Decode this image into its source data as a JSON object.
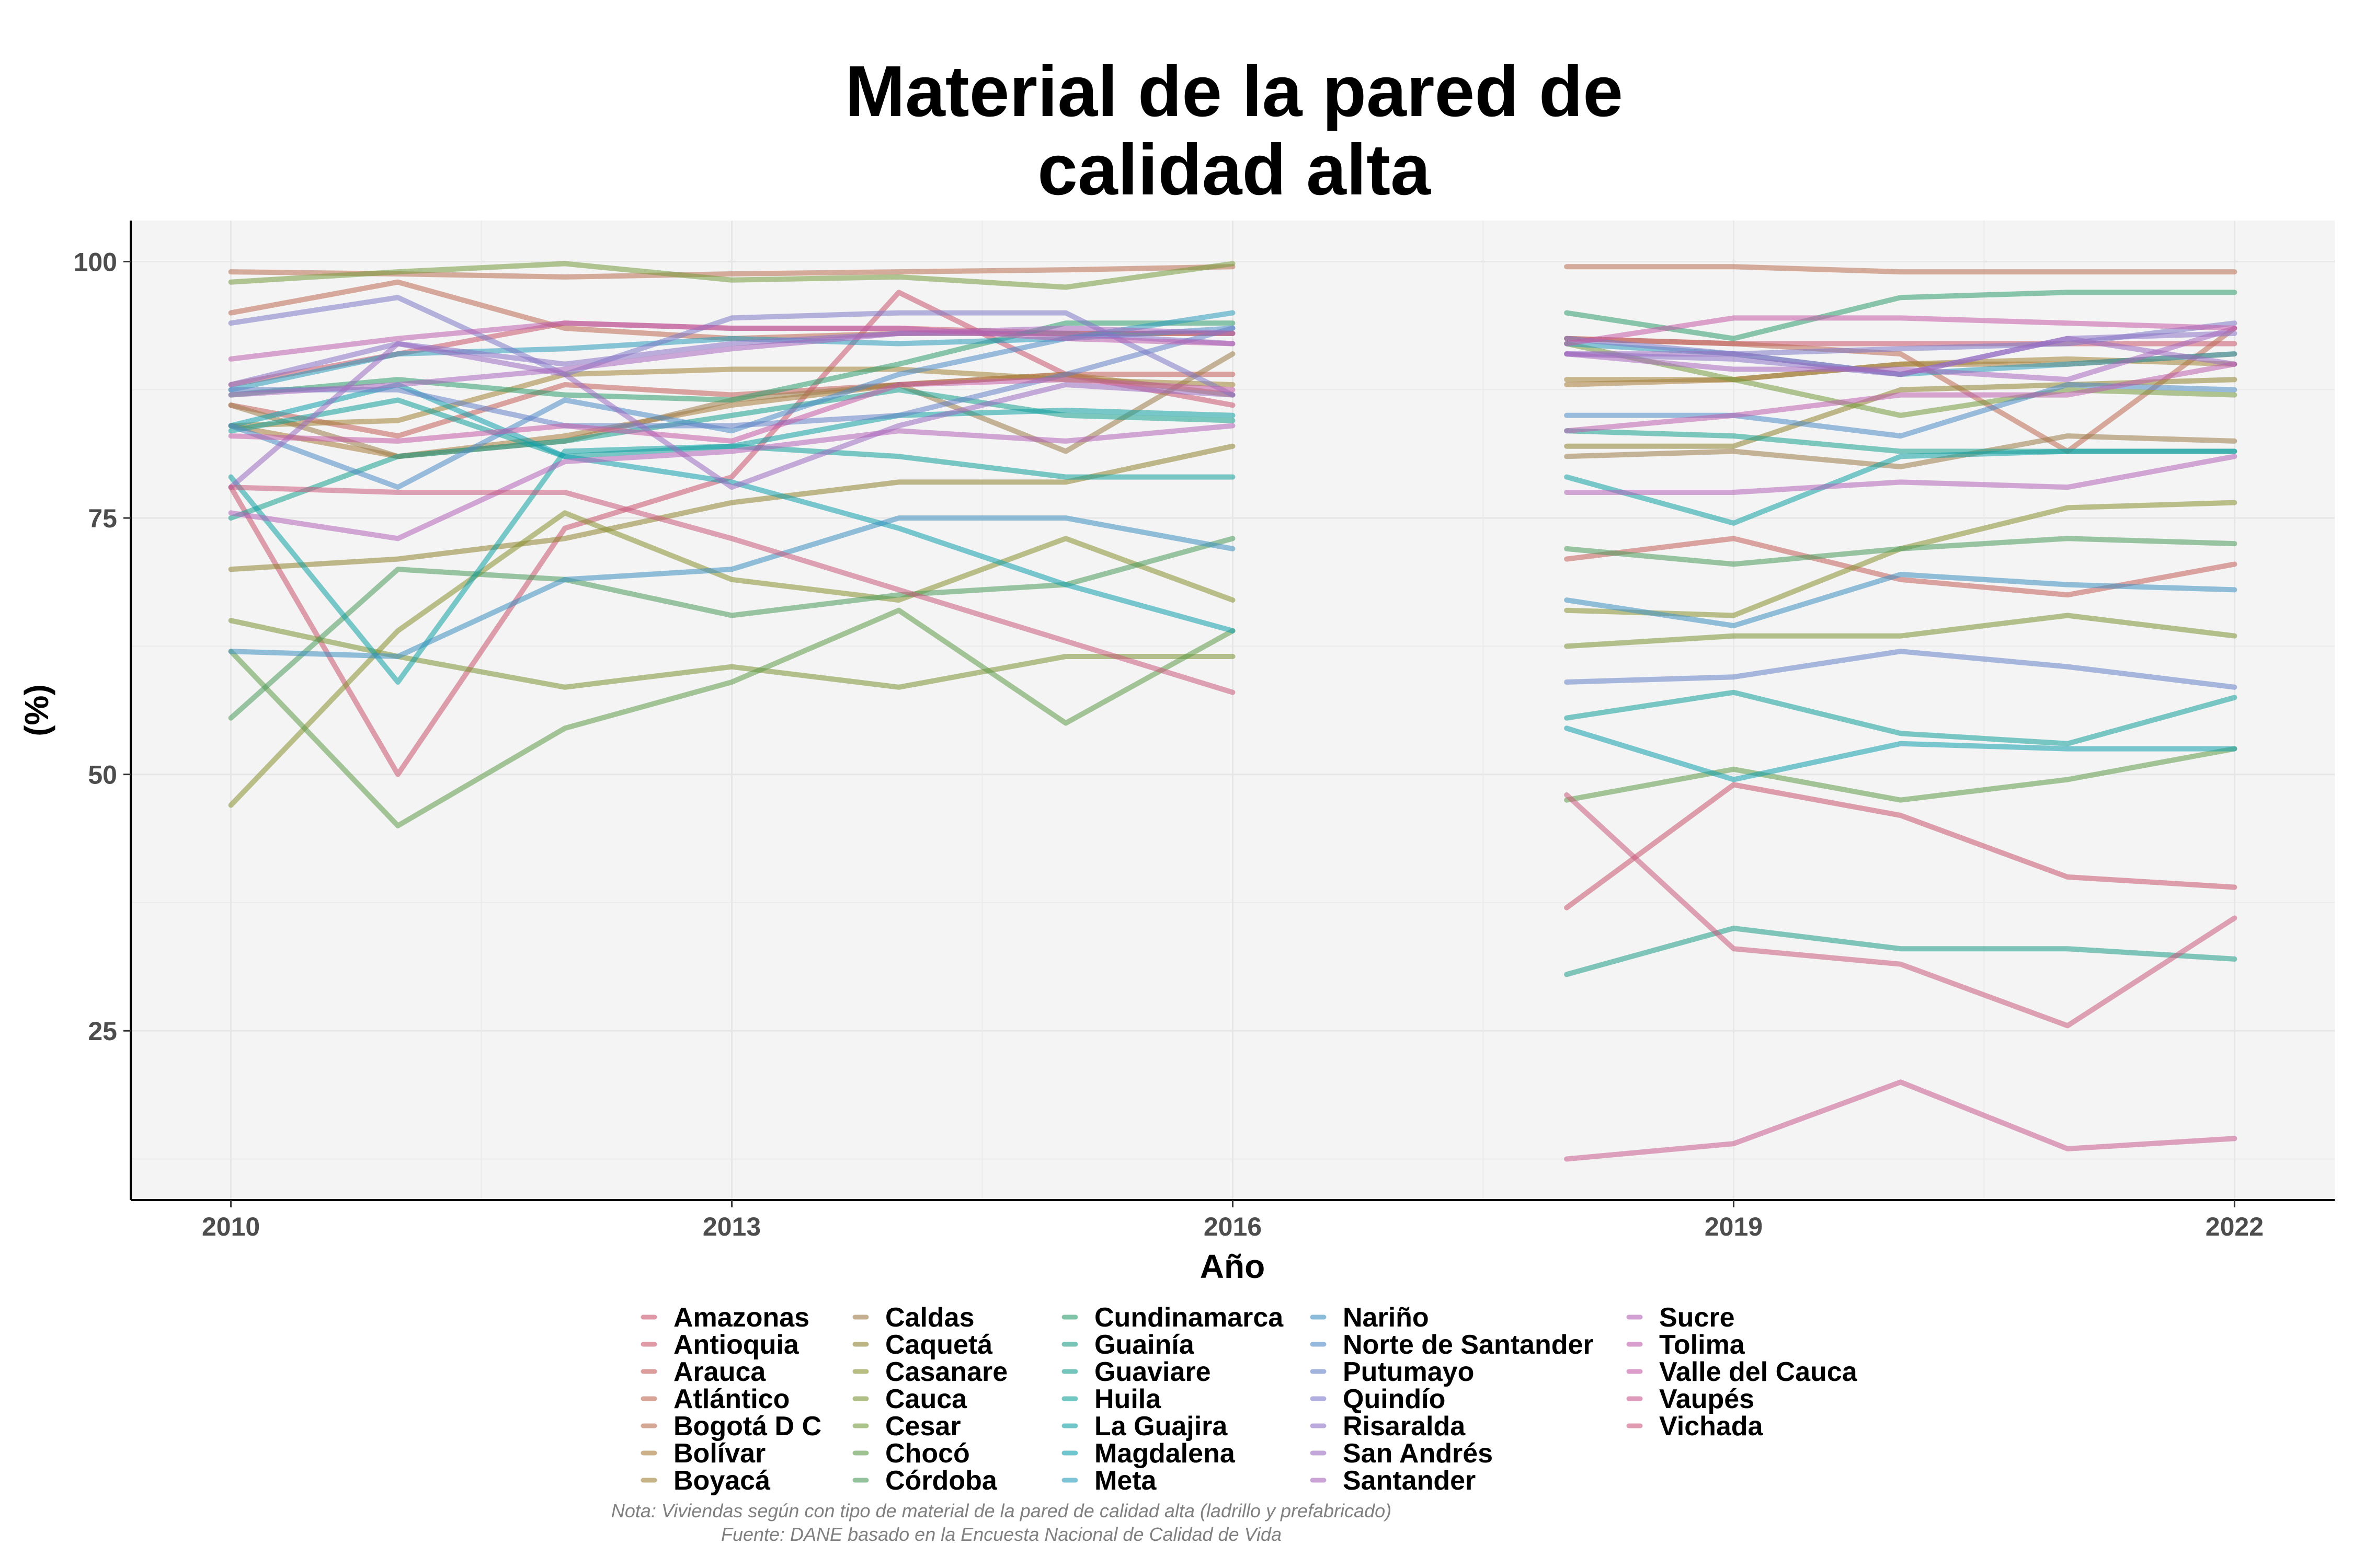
{
  "chart_data": {
    "type": "line",
    "title_lines": [
      "Material de la pared de",
      "calidad alta"
    ],
    "xlabel": "Año",
    "ylabel": "(%)",
    "x": [
      2010,
      2011,
      2012,
      2013,
      2014,
      2015,
      2016,
      2017,
      2018,
      2019,
      2020,
      2021,
      2022
    ],
    "x_ticks": [
      2010,
      2013,
      2016,
      2019,
      2022
    ],
    "y_ticks": [
      25,
      50,
      75,
      100
    ],
    "xlim": [
      2009.4,
      2022.6
    ],
    "ylim": [
      8.5,
      104
    ],
    "grid": true,
    "legend_position": "bottom",
    "caption_lines": [
      "Nota: Viviendas según con tipo de material de la pared de calidad alta (ladrillo y prefabricado)",
      "Fuente: DANE basado en la Encuesta Nacional de Calidad de Vida"
    ],
    "series": [
      {
        "name": "Amazonas",
        "color": "#c8546e",
        "values": [
          78,
          50,
          74,
          79,
          97,
          89,
          86,
          null,
          37,
          49,
          46,
          40,
          39
        ]
      },
      {
        "name": "Antioquia",
        "color": "#c9566b",
        "values": [
          88,
          91,
          94,
          93.5,
          93.5,
          93,
          93,
          null,
          92.5,
          92,
          92,
          92,
          92
        ]
      },
      {
        "name": "Arauca",
        "color": "#c35e5a",
        "values": [
          86,
          83,
          88,
          87,
          88,
          89,
          89,
          null,
          71,
          73,
          69,
          67.5,
          70.5
        ]
      },
      {
        "name": "Atlántico",
        "color": "#bd6752",
        "values": [
          95,
          98,
          93.5,
          92.5,
          93,
          93,
          93,
          null,
          92.5,
          92,
          91,
          81.5,
          93.5
        ]
      },
      {
        "name": "Bogotá D C",
        "color": "#b96e50",
        "values": [
          99,
          98.8,
          98.5,
          98.8,
          99,
          99.2,
          99.5,
          null,
          99.5,
          99.5,
          99,
          99,
          99
        ]
      },
      {
        "name": "Bolívar",
        "color": "#a97c3a",
        "values": [
          84,
          81,
          83,
          86,
          88,
          89,
          87,
          null,
          88,
          88.5,
          90,
          90,
          91
        ]
      },
      {
        "name": "Boyacá",
        "color": "#a28236",
        "values": [
          84,
          84.5,
          89,
          89.5,
          89.5,
          88.5,
          88,
          null,
          88.5,
          88.5,
          90,
          90.5,
          90
        ]
      },
      {
        "name": "Caldas",
        "color": "#9c7c48",
        "values": [
          86,
          81,
          82.5,
          86.5,
          88,
          81.5,
          91,
          null,
          81,
          81.5,
          80,
          83,
          82.5
        ]
      },
      {
        "name": "Caquetá",
        "color": "#8f8430",
        "values": [
          70,
          71,
          73,
          76.5,
          78.5,
          78.5,
          82,
          null,
          82,
          82,
          87.5,
          88,
          88.5
        ]
      },
      {
        "name": "Casanare",
        "color": "#889231",
        "values": [
          47,
          64,
          75.5,
          69,
          67,
          73,
          67,
          null,
          66,
          65.5,
          72,
          76,
          76.5
        ]
      },
      {
        "name": "Cauca",
        "color": "#7c9433",
        "values": [
          65,
          61.5,
          58.5,
          60.5,
          58.5,
          61.5,
          61.5,
          null,
          62.5,
          63.5,
          63.5,
          65.5,
          63.5
        ]
      },
      {
        "name": "Cesar",
        "color": "#749b3d",
        "values": [
          98,
          99,
          99.8,
          98.2,
          98.5,
          97.5,
          99.8,
          null,
          92,
          88.5,
          85,
          87.5,
          87
        ]
      },
      {
        "name": "Chocó",
        "color": "#5f9a48",
        "values": [
          62,
          45,
          54.5,
          59,
          66,
          55,
          64,
          null,
          47.5,
          50.5,
          47.5,
          49.5,
          52.5
        ]
      },
      {
        "name": "Córdoba",
        "color": "#4b9a5b",
        "values": [
          55.5,
          70,
          69,
          65.5,
          67.5,
          68.5,
          73,
          null,
          72,
          70.5,
          72,
          73,
          72.5
        ]
      },
      {
        "name": "Cundinamarca",
        "color": "#2e9c6c",
        "values": [
          87,
          88.5,
          87,
          86.5,
          90,
          94,
          94,
          null,
          95,
          92.5,
          96.5,
          97,
          97
        ]
      },
      {
        "name": "Guainía",
        "color": "#1e9d86",
        "values": [
          null,
          null,
          null,
          null,
          null,
          null,
          null,
          null,
          30.5,
          35,
          33,
          33,
          32
        ]
      },
      {
        "name": "Guaviare",
        "color": "#18a08f",
        "values": [
          75,
          81,
          82.5,
          85,
          87.5,
          85,
          84.5,
          null,
          83.5,
          83,
          81.5,
          81.5,
          81.5
        ]
      },
      {
        "name": "Huila",
        "color": "#13a19a",
        "values": [
          83.5,
          86.5,
          81,
          82,
          81,
          79,
          79,
          null,
          55.5,
          58,
          54,
          53,
          57.5
        ]
      },
      {
        "name": "La Guajira",
        "color": "#11a0a4",
        "values": [
          79,
          59,
          81.5,
          82,
          85,
          85.5,
          85,
          null,
          79,
          74.5,
          81,
          81.5,
          81.5
        ]
      },
      {
        "name": "Magdalena",
        "color": "#10a0ae",
        "values": [
          84,
          88,
          81,
          78.5,
          74,
          68.5,
          64,
          null,
          54.5,
          49.5,
          53,
          52.5,
          52.5
        ]
      },
      {
        "name": "Meta",
        "color": "#2a9bbb",
        "values": [
          87.5,
          91,
          91.5,
          92.5,
          92,
          92.5,
          95,
          null,
          92,
          91,
          89,
          90,
          91
        ]
      },
      {
        "name": "Nariño",
        "color": "#3d8fc1",
        "values": [
          62,
          61.5,
          69,
          70,
          75,
          75,
          72,
          null,
          67,
          64.5,
          69.5,
          68.5,
          68
        ]
      },
      {
        "name": "Norte de Santander",
        "color": "#4d8bc6",
        "values": [
          84,
          78,
          86.5,
          83.5,
          89,
          92.5,
          93.5,
          null,
          85,
          85,
          83,
          88,
          87.5
        ]
      },
      {
        "name": "Putumayo",
        "color": "#6482c7",
        "values": [
          87.5,
          87.5,
          84,
          84,
          85,
          89,
          93.5,
          null,
          59,
          59.5,
          62,
          60.5,
          58.5
        ]
      },
      {
        "name": "Quindío",
        "color": "#7d7ac9",
        "values": [
          94,
          96.5,
          89,
          94.5,
          95,
          95,
          87,
          null,
          92.5,
          91,
          91.5,
          92,
          94
        ]
      },
      {
        "name": "Risaralda",
        "color": "#8d73c6",
        "values": [
          88,
          92,
          90,
          92,
          93,
          93,
          92,
          null,
          91,
          90.5,
          89,
          92.5,
          93
        ]
      },
      {
        "name": "San Andrés",
        "color": "#9b6cc1",
        "values": [
          78,
          92,
          89,
          78,
          84,
          88,
          87,
          null,
          91,
          91,
          89,
          92.5,
          90
        ]
      },
      {
        "name": "Santander",
        "color": "#a767bd",
        "values": [
          87,
          88,
          89.5,
          91.5,
          93,
          93.5,
          93,
          null,
          91,
          89.5,
          89.5,
          88.5,
          93.5
        ]
      },
      {
        "name": "Sucre",
        "color": "#b262b8",
        "values": [
          75.5,
          73,
          80.5,
          81.5,
          83.5,
          82.5,
          84,
          null,
          77.5,
          77.5,
          78.5,
          78,
          81
        ]
      },
      {
        "name": "Tolima",
        "color": "#bd5eae",
        "values": [
          90.5,
          92.5,
          94,
          93.5,
          93.5,
          92.5,
          92,
          null,
          83.5,
          85,
          87,
          87,
          90
        ]
      },
      {
        "name": "Valle del Cauca",
        "color": "#c55ba7",
        "values": [
          83,
          82.5,
          84,
          82.5,
          88,
          88.5,
          87.5,
          null,
          92,
          94.5,
          94.5,
          94,
          93.5
        ]
      },
      {
        "name": "Vaupés",
        "color": "#c9598e",
        "values": [
          null,
          null,
          null,
          null,
          null,
          null,
          null,
          null,
          12.5,
          14,
          20,
          13.5,
          14.5
        ]
      },
      {
        "name": "Vichada",
        "color": "#cb5a7c",
        "values": [
          78,
          77.5,
          77.5,
          73,
          68,
          63,
          58,
          null,
          48,
          33,
          31.5,
          25.5,
          36
        ]
      }
    ]
  }
}
